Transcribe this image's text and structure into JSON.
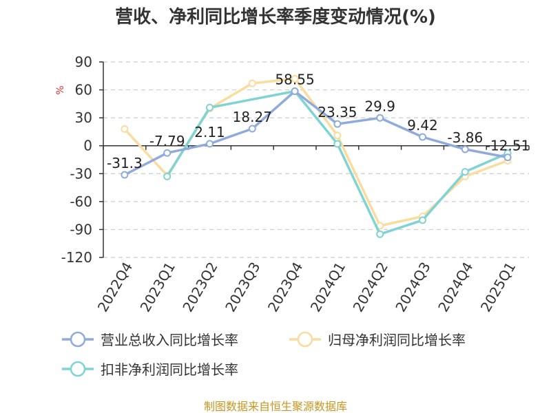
{
  "chart_data": {
    "type": "line",
    "title": "营收、净利同比增长率季度变动情况(%)",
    "ylabel": "%",
    "xlabel": "",
    "categories": [
      "2022Q4",
      "2023Q1",
      "2023Q2",
      "2023Q3",
      "2023Q4",
      "2024Q1",
      "2024Q2",
      "2024Q3",
      "2024Q4",
      "2025Q1"
    ],
    "ylim": [
      -120,
      90
    ],
    "yticks": [
      90,
      60,
      30,
      0,
      -30,
      -60,
      -90,
      -120
    ],
    "grid": true,
    "legend_position": "bottom",
    "series": [
      {
        "name": "营业总收入同比增长率",
        "color": "#8faadc",
        "values": [
          -31.3,
          -7.79,
          2.11,
          18.27,
          58.55,
          23.35,
          29.9,
          9.42,
          -3.86,
          -12.51
        ],
        "labels": [
          "-31.3",
          "-7.79",
          "2.11",
          "18.27",
          "58.55",
          "23.35",
          "29.9",
          "9.42",
          "-3.86",
          "-12.51"
        ]
      },
      {
        "name": "归母净利润同比增长率",
        "color": "#f9dc9e",
        "values": [
          18,
          -32,
          40,
          67,
          72,
          11,
          -86,
          -76,
          -33,
          -16
        ]
      },
      {
        "name": "扣非净利润同比增长率",
        "color": "#7fd3d3",
        "values": [
          null,
          -33,
          41,
          null,
          58.55,
          2,
          -95,
          -80,
          -28,
          -8
        ]
      }
    ]
  },
  "footer": {
    "source": "制图数据来自恒生聚源数据库"
  }
}
